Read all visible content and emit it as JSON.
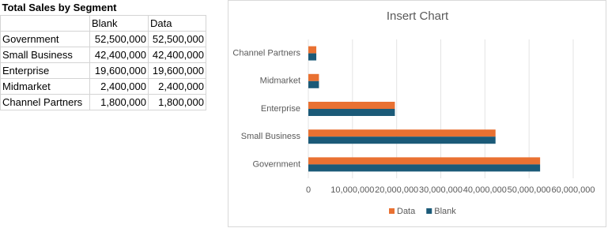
{
  "table": {
    "title": "Total Sales by Segment",
    "header": [
      "Blank",
      "Data"
    ],
    "rows": [
      [
        "Government",
        "52,500,000",
        "52,500,000"
      ],
      [
        "Small Business",
        "42,400,000",
        "42,400,000"
      ],
      [
        "Enterprise",
        "19,600,000",
        "19,600,000"
      ],
      [
        "Midmarket",
        "2,400,000",
        "2,400,000"
      ],
      [
        "Channel Partners",
        "1,800,000",
        "1,800,000"
      ]
    ]
  },
  "chart_data": {
    "type": "hbar",
    "title": "Insert Chart",
    "categories": [
      "Government",
      "Small Business",
      "Enterprise",
      "Midmarket",
      "Channel Partners"
    ],
    "series": [
      {
        "name": "Data",
        "color": "#e97132",
        "values": [
          52500000,
          42400000,
          19600000,
          2400000,
          1800000
        ]
      },
      {
        "name": "Blank",
        "color": "#1b5a78",
        "values": [
          52500000,
          42400000,
          19600000,
          2400000,
          1800000
        ]
      }
    ],
    "xlim": [
      0,
      60000000
    ],
    "xticks": [
      0,
      {
        "value": 10000000,
        "label": "10,000,000"
      },
      {
        "value": 20000000,
        "label": "20,000,000"
      },
      {
        "value": 30000000,
        "label": "30,000,000"
      },
      {
        "value": 40000000,
        "label": "40,000,000"
      },
      {
        "value": 50000000,
        "label": "50,000,000"
      },
      {
        "value": 60000000,
        "label": "60,000,000"
      }
    ],
    "grid": true,
    "legend": "bottom"
  }
}
